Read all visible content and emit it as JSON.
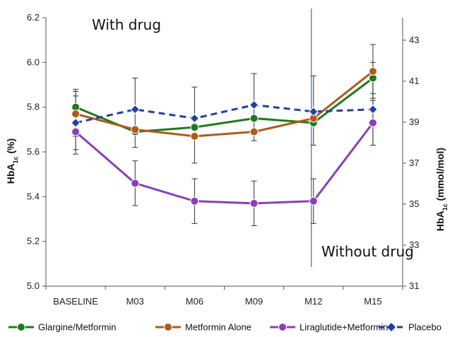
{
  "chart_data": {
    "type": "line",
    "categories": [
      "BASELINE",
      "M03",
      "M06",
      "M09",
      "M12",
      "M15"
    ],
    "y_left": {
      "label_main": "HbA",
      "label_sub": "1c",
      "label_unit": " (%)",
      "range": [
        5.0,
        6.2
      ],
      "ticks": [
        "5.0",
        "5.2",
        "5.4",
        "5.6",
        "5.8",
        "6.0",
        "6.2"
      ]
    },
    "y_right": {
      "label_main": "HbA",
      "label_sub": "1c",
      "label_unit": " (mmol/mol)",
      "range": [
        31,
        44.1
      ],
      "ticks": [
        "31",
        "33",
        "35",
        "37",
        "39",
        "41",
        "43"
      ]
    },
    "annotations": {
      "with_drug": "With drug",
      "without_drug": "Without drug"
    },
    "divider_at_category": "M12",
    "legend_placement": "bottom",
    "series": [
      {
        "name": "Glargine/Metformin",
        "color": "#1f7a1f",
        "dashed": false,
        "values": [
          5.8,
          5.69,
          5.71,
          5.75,
          5.73,
          5.93
        ],
        "error_plus": [
          0.08,
          0.0,
          0.0,
          0.0,
          0.0,
          0.07
        ],
        "error_minus": [
          0.08,
          0.0,
          0.0,
          0.0,
          0.0,
          0.07
        ]
      },
      {
        "name": "Metformin Alone",
        "color": "#b05a18",
        "dashed": false,
        "values": [
          5.77,
          5.7,
          5.67,
          5.69,
          5.75,
          5.96
        ],
        "error_plus": [
          0.1,
          0.0,
          0.0,
          0.0,
          0.0,
          0.12
        ],
        "error_minus": [
          0.1,
          0.0,
          0.0,
          0.0,
          0.0,
          0.12
        ]
      },
      {
        "name": "Liraglutide+Metformin",
        "color": "#8a3fb8",
        "dashed": false,
        "values": [
          5.69,
          5.46,
          5.38,
          5.37,
          5.38,
          5.73
        ],
        "error_plus": [
          0.1,
          0.1,
          0.1,
          0.1,
          0.1,
          0.1
        ],
        "error_minus": [
          0.1,
          0.1,
          0.1,
          0.1,
          0.1,
          0.1
        ]
      },
      {
        "name": "Placebo",
        "color": "#1f3fa8",
        "dashed": true,
        "values": [
          5.73,
          5.79,
          5.75,
          5.81,
          5.78,
          5.79
        ],
        "error_plus": [
          0.12,
          0.14,
          0.14,
          0.14,
          0.16,
          0.15
        ],
        "error_minus": [
          0.12,
          0.17,
          0.2,
          0.16,
          0.15,
          0.16
        ]
      }
    ]
  }
}
